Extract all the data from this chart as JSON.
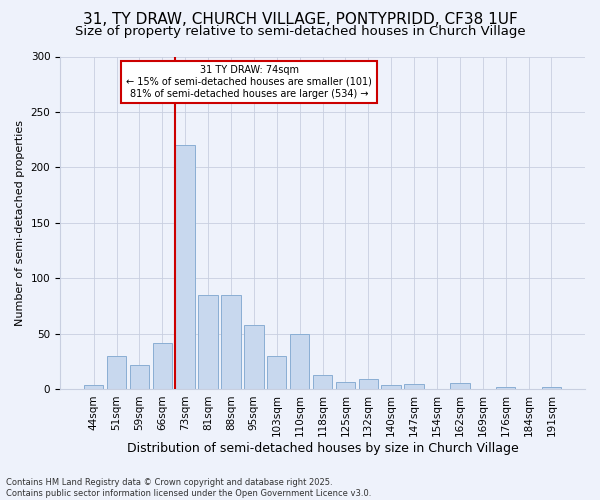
{
  "title": "31, TY DRAW, CHURCH VILLAGE, PONTYPRIDD, CF38 1UF",
  "subtitle": "Size of property relative to semi-detached houses in Church Village",
  "xlabel": "Distribution of semi-detached houses by size in Church Village",
  "ylabel": "Number of semi-detached properties",
  "categories": [
    "44sqm",
    "51sqm",
    "59sqm",
    "66sqm",
    "73sqm",
    "81sqm",
    "88sqm",
    "95sqm",
    "103sqm",
    "110sqm",
    "118sqm",
    "125sqm",
    "132sqm",
    "140sqm",
    "147sqm",
    "154sqm",
    "162sqm",
    "169sqm",
    "176sqm",
    "184sqm",
    "191sqm"
  ],
  "values": [
    4,
    30,
    22,
    42,
    220,
    85,
    85,
    58,
    30,
    50,
    13,
    7,
    9,
    4,
    5,
    0,
    6,
    0,
    2,
    0,
    2
  ],
  "bar_color": "#c8d8ee",
  "bar_edge_color": "#8aaed4",
  "vline_index": 4,
  "vline_color": "#cc0000",
  "annotation_text": "31 TY DRAW: 74sqm\n← 15% of semi-detached houses are smaller (101)\n81% of semi-detached houses are larger (534) →",
  "annotation_box_color": "#ffffff",
  "annotation_box_edge": "#cc0000",
  "ylim": [
    0,
    300
  ],
  "yticks": [
    0,
    50,
    100,
    150,
    200,
    250,
    300
  ],
  "footnote": "Contains HM Land Registry data © Crown copyright and database right 2025.\nContains public sector information licensed under the Open Government Licence v3.0.",
  "bg_color": "#eef2fb",
  "grid_color": "#c8cfe0",
  "title_fontsize": 11,
  "subtitle_fontsize": 9.5,
  "xlabel_fontsize": 9,
  "ylabel_fontsize": 8,
  "tick_fontsize": 7.5,
  "annotation_fontsize": 7,
  "footnote_fontsize": 6
}
